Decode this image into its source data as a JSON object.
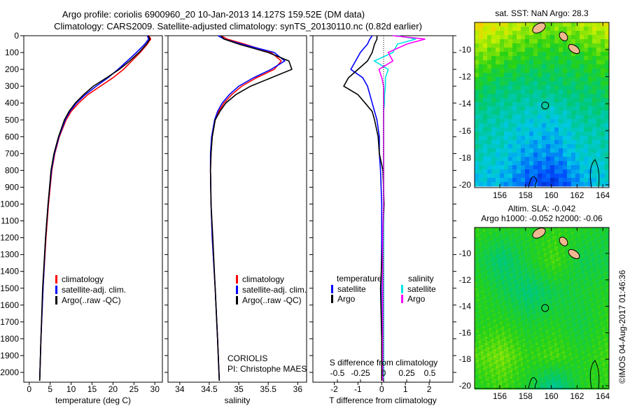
{
  "title": {
    "line1": "Argo profile: coriolis 6900960_20 10-Jan-2013 14.127S 159.52E (DM data)",
    "line2": "Climatology: CARS2009. Satellite-adjusted climatology: synTS_20130110.nc (0.82d earlier)"
  },
  "credit": "©IMOS 04-Aug-2017 01:46:36",
  "colors": {
    "clim": "#ff0000",
    "sat": "#0000ff",
    "argo": "#000000",
    "s_sat": "#00e5e5",
    "s_argo": "#ff00ff"
  },
  "chart_data": [
    {
      "type": "line",
      "id": "temperature",
      "xlabel": "temperature (deg C)",
      "ylabel": "",
      "xlim": [
        -1.3,
        31.8
      ],
      "ylim": [
        2070,
        0
      ],
      "xticks": [
        "0",
        "5",
        "10",
        "15",
        "20",
        "25",
        "30"
      ],
      "xtick_values": [
        0,
        5,
        10,
        15,
        20,
        25,
        30
      ],
      "yticks": [
        "0",
        "100",
        "200",
        "300",
        "400",
        "500",
        "600",
        "700",
        "800",
        "900",
        "1000",
        "1100",
        "1200",
        "1300",
        "1400",
        "1500",
        "1600",
        "1700",
        "1800",
        "1900",
        "2000"
      ],
      "legend": [
        "climatology",
        "satellite-adj. clim.",
        "Argo(..raw -QC)"
      ],
      "depth": [
        0,
        20,
        50,
        100,
        150,
        200,
        250,
        300,
        350,
        400,
        450,
        500,
        600,
        700,
        800,
        1000,
        1200,
        1500,
        1800,
        2050
      ],
      "series": [
        {
          "name": "climatology",
          "color": "clim",
          "values": [
            28.6,
            29,
            28.2,
            26.5,
            24.5,
            22.5,
            20,
            17,
            14,
            11.8,
            10,
            8.8,
            7.2,
            6.1,
            5.4,
            4.6,
            4.0,
            3.3,
            2.8,
            2.5
          ]
        },
        {
          "name": "satellite-adj. clim.",
          "color": "sat",
          "values": [
            28.2,
            28.5,
            27.6,
            25.6,
            23.4,
            21.2,
            18.8,
            16,
            13.4,
            11.3,
            9.7,
            8.6,
            7.1,
            6.0,
            5.3,
            4.5,
            3.9,
            3.3,
            2.8,
            2.5
          ]
        },
        {
          "name": "Argo(..raw -QC)",
          "color": "argo",
          "values": [
            28.4,
            28.8,
            28,
            26.2,
            24,
            21.5,
            18.5,
            15.3,
            13,
            11,
            9.5,
            8.4,
            7.0,
            5.9,
            5.2,
            4.5,
            3.9,
            3.2,
            2.8,
            2.5
          ]
        }
      ]
    },
    {
      "type": "line",
      "id": "salinity",
      "xlabel": "salinity",
      "xlim": [
        33.8,
        36.15
      ],
      "ylim": [
        2070,
        0
      ],
      "xticks": [
        "34",
        "34.5",
        "35",
        "35.5",
        "36"
      ],
      "xtick_values": [
        34,
        34.5,
        35,
        35.5,
        36
      ],
      "legend": [
        "climatology",
        "satellite-adj. clim.",
        "Argo(..raw -QC)"
      ],
      "annotation": [
        "CORIOLIS",
        "PI: Christophe MAES"
      ],
      "depth": [
        0,
        20,
        50,
        100,
        150,
        200,
        250,
        300,
        350,
        400,
        450,
        500,
        600,
        700,
        800,
        1000,
        1200,
        1500,
        1800,
        2050
      ],
      "series": [
        {
          "name": "climatology",
          "color": "clim",
          "values": [
            34.7,
            34.8,
            35.1,
            35.55,
            35.72,
            35.6,
            35.3,
            35.05,
            34.88,
            34.75,
            34.66,
            34.6,
            34.55,
            34.53,
            34.52,
            34.53,
            34.55,
            34.6,
            34.64,
            34.67
          ]
        },
        {
          "name": "satellite-adj. clim.",
          "color": "sat",
          "values": [
            34.65,
            34.75,
            35.05,
            35.6,
            35.78,
            35.55,
            35.25,
            35.0,
            34.84,
            34.72,
            34.64,
            34.59,
            34.54,
            34.52,
            34.52,
            34.53,
            34.55,
            34.6,
            34.64,
            34.67
          ]
        },
        {
          "name": "Argo(..raw -QC)",
          "color": "argo",
          "values": [
            34.7,
            34.75,
            35.0,
            35.5,
            35.85,
            35.9,
            35.55,
            35.2,
            34.95,
            34.78,
            34.68,
            34.6,
            34.55,
            34.53,
            34.52,
            34.53,
            34.56,
            34.6,
            34.64,
            34.67
          ]
        }
      ]
    },
    {
      "type": "line",
      "id": "difference",
      "xlabel": "T difference from climatology",
      "x2label": "S difference from climatology",
      "xlim": [
        -2.9,
        3.0
      ],
      "ylim": [
        2070,
        0
      ],
      "xticks": [
        "-2",
        "-1",
        "0",
        "1",
        "2"
      ],
      "xtick_values": [
        -2,
        -1,
        0,
        1,
        2
      ],
      "x2ticks": [
        "-0.5",
        "-0.25",
        "0",
        "0.25",
        "0.5"
      ],
      "x2tick_values": [
        -0.5,
        -0.25,
        0,
        0.25,
        0.5
      ],
      "legend_headers": [
        "temperature",
        "salinity"
      ],
      "legend": [
        "satellite",
        "Argo",
        "satellite",
        "Argo"
      ],
      "depth": [
        0,
        20,
        50,
        100,
        150,
        200,
        250,
        300,
        350,
        400,
        450,
        500,
        600,
        700,
        800,
        1000,
        1200,
        1500,
        1800,
        2050
      ],
      "series": [
        {
          "name": "T satellite",
          "color": "sat",
          "scale": "T",
          "values": [
            -0.4,
            -0.5,
            -0.6,
            -0.9,
            -1.1,
            -1.3,
            -0.8,
            -0.6,
            -0.5,
            -0.4,
            -0.3,
            -0.2,
            -0.1,
            -0.1,
            -0.05,
            0,
            0,
            -0.02,
            0,
            0
          ]
        },
        {
          "name": "T Argo",
          "color": "argo",
          "scale": "T",
          "values": [
            -0.2,
            -0.2,
            -0.3,
            -0.4,
            -0.6,
            -1.0,
            -1.4,
            -1.6,
            -1.0,
            -0.7,
            -0.4,
            -0.3,
            -0.15,
            -0.1,
            0.05,
            0.1,
            0.05,
            -0.05,
            0,
            0
          ]
        },
        {
          "name": "S satellite",
          "color": "s_sat",
          "scale": "S",
          "values": [
            0.15,
            0.35,
            0.15,
            0.1,
            -0.1,
            0.05,
            0.02,
            0.02,
            0.01,
            0.01,
            0,
            0,
            0,
            0,
            0,
            0,
            0,
            0,
            0,
            0
          ]
        },
        {
          "name": "S Argo",
          "color": "s_argo",
          "scale": "S",
          "values": [
            0.1,
            0.45,
            0.25,
            0.05,
            0.1,
            -0.05,
            -0.02,
            0,
            0,
            0,
            0,
            0,
            0,
            0,
            0,
            0,
            -0.01,
            -0.01,
            -0.01,
            -0.01
          ]
        }
      ]
    },
    {
      "type": "heatmap",
      "id": "sst-map",
      "title": "sat. SST: NaN Argo: 28.3",
      "xticks": [
        "156",
        "158",
        "160",
        "162",
        "164"
      ],
      "yticks": [
        "-10",
        "-12",
        "-14",
        "-16",
        "-18",
        "-20"
      ],
      "lon_range": [
        154.2,
        164.8
      ],
      "lat_range": [
        -20.1,
        -8.3
      ],
      "argo_position": [
        159.52,
        -14.13
      ],
      "coarse_grid": [
        [
          0.85,
          0.8,
          0.75,
          0.7,
          0.75,
          0.8
        ],
        [
          0.7,
          0.65,
          0.6,
          0.58,
          0.6,
          0.65
        ],
        [
          0.55,
          0.5,
          0.48,
          0.5,
          0.52,
          0.55
        ],
        [
          0.45,
          0.42,
          0.38,
          0.36,
          0.45,
          0.45
        ],
        [
          0.42,
          0.38,
          0.3,
          0.28,
          0.38,
          0.42
        ],
        [
          0.35,
          0.32,
          0.2,
          0.15,
          0.3,
          0.38
        ]
      ]
    },
    {
      "type": "heatmap",
      "id": "sla-map",
      "title": "Altim. SLA: -0.042",
      "subtitle": "Argo h1000: -0.052 h2000: -0.06",
      "xticks": [
        "156",
        "158",
        "160",
        "162",
        "164"
      ],
      "yticks": [
        "-10",
        "-12",
        "-14",
        "-16",
        "-18",
        "-20"
      ],
      "lon_range": [
        154.2,
        164.8
      ],
      "lat_range": [
        -20.1,
        -8.0
      ],
      "argo_position": [
        159.52,
        -14.13
      ],
      "coarse_grid": [
        [
          0.62,
          0.6,
          0.6,
          0.62,
          0.6,
          0.58
        ],
        [
          0.58,
          0.5,
          0.58,
          0.65,
          0.55,
          0.56
        ],
        [
          0.62,
          0.56,
          0.5,
          0.55,
          0.58,
          0.6
        ],
        [
          0.6,
          0.62,
          0.58,
          0.6,
          0.56,
          0.62
        ],
        [
          0.66,
          0.7,
          0.62,
          0.65,
          0.6,
          0.64
        ],
        [
          0.6,
          0.64,
          0.58,
          0.45,
          0.6,
          0.62
        ]
      ]
    }
  ]
}
